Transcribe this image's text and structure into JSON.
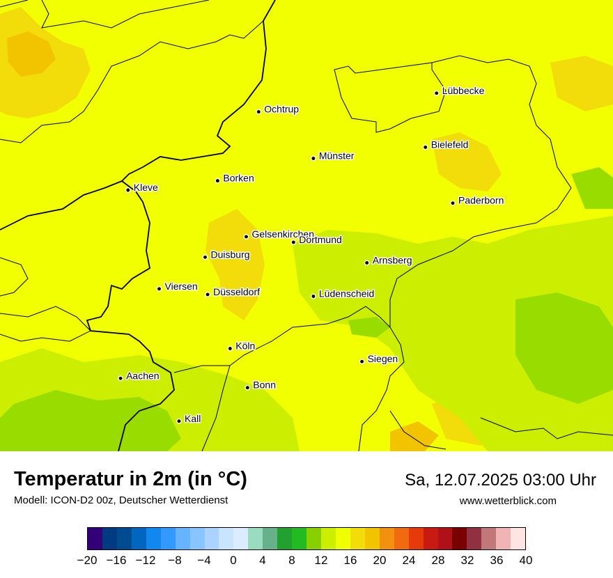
{
  "map": {
    "cities": [
      {
        "name": "Lübbecke",
        "lon": 8.62,
        "lat": 52.31
      },
      {
        "name": "Ochtrup",
        "lon": 7.19,
        "lat": 52.21
      },
      {
        "name": "Bielefeld",
        "lon": 8.53,
        "lat": 52.02
      },
      {
        "name": "Münster",
        "lon": 7.63,
        "lat": 51.96
      },
      {
        "name": "Borken",
        "lon": 6.86,
        "lat": 51.84
      },
      {
        "name": "Kleve",
        "lon": 6.14,
        "lat": 51.79
      },
      {
        "name": "Paderborn",
        "lon": 8.75,
        "lat": 51.72
      },
      {
        "name": "Gelsenkirchen",
        "lon": 7.09,
        "lat": 51.54
      },
      {
        "name": "Dortmund",
        "lon": 7.47,
        "lat": 51.51
      },
      {
        "name": "Duisburg",
        "lon": 6.76,
        "lat": 51.43
      },
      {
        "name": "Arnsberg",
        "lon": 8.06,
        "lat": 51.4
      },
      {
        "name": "Viersen",
        "lon": 6.39,
        "lat": 51.26
      },
      {
        "name": "Düsseldorf",
        "lon": 6.78,
        "lat": 51.23
      },
      {
        "name": "Lüdenscheid",
        "lon": 7.63,
        "lat": 51.22
      },
      {
        "name": "Köln",
        "lon": 6.96,
        "lat": 50.94
      },
      {
        "name": "Siegen",
        "lon": 8.02,
        "lat": 50.87
      },
      {
        "name": "Aachen",
        "lon": 6.08,
        "lat": 50.78
      },
      {
        "name": "Bonn",
        "lon": 7.1,
        "lat": 50.73
      },
      {
        "name": "Kall",
        "lon": 6.55,
        "lat": 50.55
      }
    ]
  },
  "header": {
    "title": "Temperatur in 2m (in °C)",
    "subtitle": "Modell: ICON-D2 00z, Deutscher Wetterdienst",
    "datetime": "Sa, 12.07.2025 03:00 Uhr",
    "website": "www.wetterblick.com"
  },
  "legend": {
    "min": -20,
    "max": 40,
    "ticks": [
      "−20",
      "−16",
      "−12",
      "−8",
      "−4",
      "0",
      "4",
      "8",
      "12",
      "16",
      "20",
      "24",
      "28",
      "32",
      "36",
      "40"
    ],
    "colors": [
      "#330077",
      "#003a80",
      "#004a90",
      "#0066c0",
      "#1188ee",
      "#3399ff",
      "#66b3ff",
      "#88c4ff",
      "#aad4ff",
      "#c8e4ff",
      "#dcecff",
      "#9adcc0",
      "#66b08a",
      "#22a030",
      "#22bb22",
      "#88d000",
      "#ccee00",
      "#eeff00",
      "#f2dc0a",
      "#f2c400",
      "#f29010",
      "#f26a10",
      "#e63a0a",
      "#c81a10",
      "#b01018",
      "#7a0000",
      "#903040",
      "#c07878",
      "#f0b4b4",
      "#ffe4e4"
    ],
    "map_colors": {
      "base": "#f1ff00",
      "warm": "#f2dc0a",
      "warmer": "#f2c400",
      "cool": "#ccee00",
      "cooler": "#99dd00",
      "border": "#000000"
    }
  }
}
